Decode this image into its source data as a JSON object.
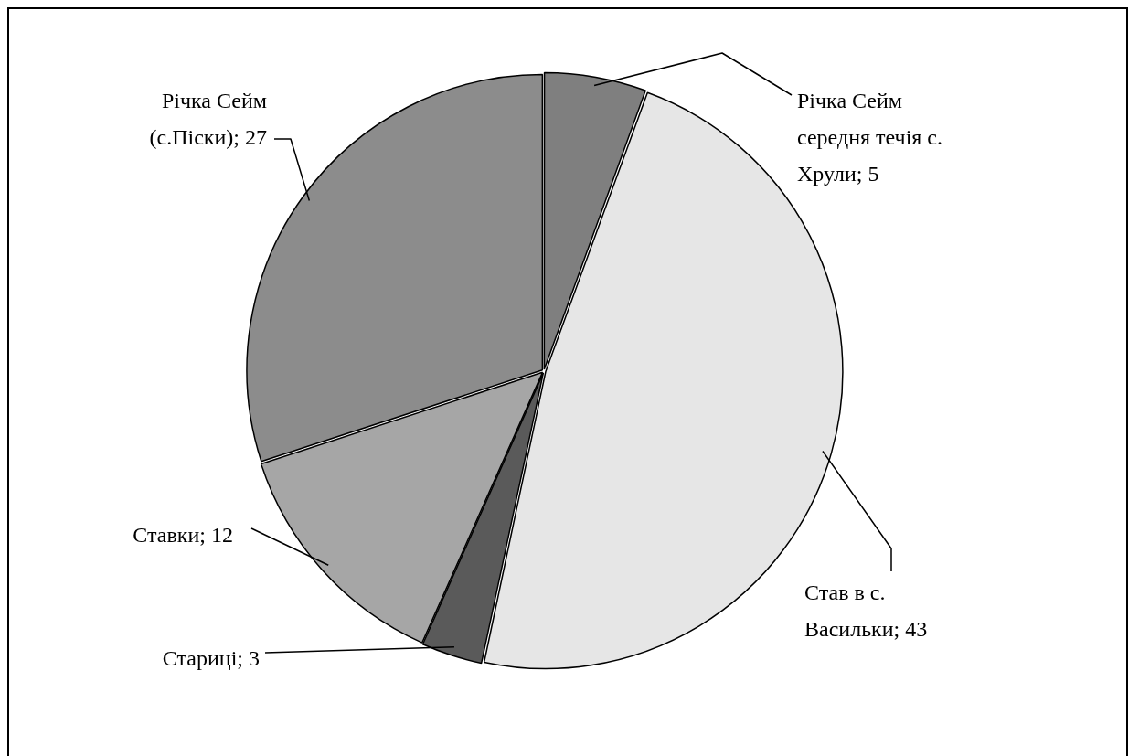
{
  "chart_data": {
    "type": "pie",
    "categories": [
      "Річка Сейм середня течія с. Хрули",
      "Став в с. Васильки",
      "Стариці",
      "Ставки",
      "Річка Сейм (с.Піски)"
    ],
    "values": [
      5,
      43,
      3,
      12,
      27
    ],
    "colors": [
      "#7f7f7f",
      "#e6e6e6",
      "#5a5a5a",
      "#a6a6a6",
      "#8c8c8c"
    ],
    "value_labels": [
      "; 5",
      "; 43",
      "; 3",
      "; 12",
      "; 27"
    ],
    "legend": false
  }
}
